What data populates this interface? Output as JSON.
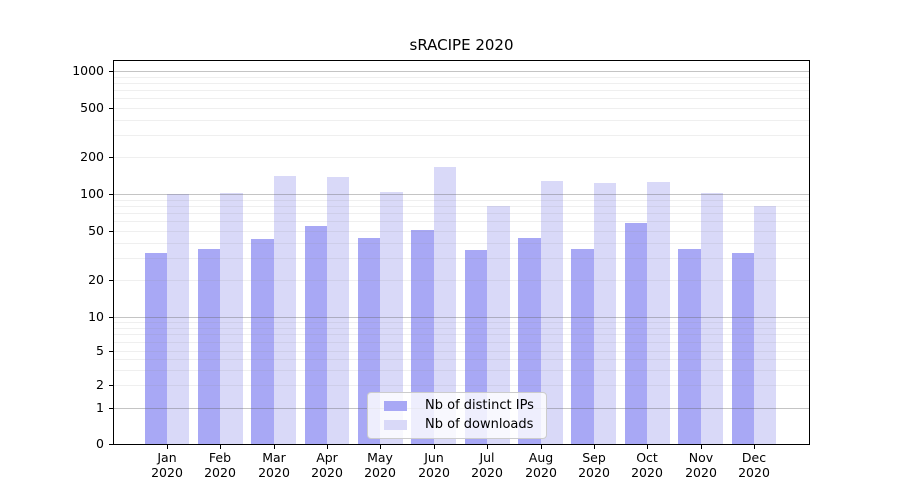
{
  "title": "sRACIPE 2020",
  "colors": {
    "distinct_ips": "#a8a8f5",
    "downloads": "#d9d9f8",
    "axis": "#000000",
    "grid_major": "#c6c6c6",
    "grid_minor": "#ebebeb",
    "legend_border": "#cccccc"
  },
  "legend": {
    "items": [
      {
        "label": "Nb of distinct IPs",
        "color_key": "distinct_ips"
      },
      {
        "label": "Nb of downloads",
        "color_key": "downloads"
      }
    ]
  },
  "x_axis": {
    "months": [
      "Jan",
      "Feb",
      "Mar",
      "Apr",
      "May",
      "Jun",
      "Jul",
      "Aug",
      "Sep",
      "Oct",
      "Nov",
      "Dec"
    ],
    "year": "2020"
  },
  "y_axis": {
    "tick_labels": [
      "0",
      "1",
      "2",
      "5",
      "10",
      "20",
      "50",
      "100",
      "200",
      "500",
      "1000"
    ]
  },
  "chart_data": {
    "type": "bar",
    "title": "sRACIPE 2020",
    "categories": [
      "Jan 2020",
      "Feb 2020",
      "Mar 2020",
      "Apr 2020",
      "May 2020",
      "Jun 2020",
      "Jul 2020",
      "Aug 2020",
      "Sep 2020",
      "Oct 2020",
      "Nov 2020",
      "Dec 2020"
    ],
    "series": [
      {
        "name": "Nb of distinct IPs",
        "color_key": "distinct_ips",
        "values": [
          33,
          36,
          43,
          55,
          44,
          51,
          35,
          44,
          36,
          58,
          36,
          33
        ]
      },
      {
        "name": "Nb of downloads",
        "color_key": "downloads",
        "values": [
          100,
          102,
          140,
          138,
          104,
          165,
          80,
          128,
          124,
          126,
          101,
          80
        ]
      }
    ],
    "xlabel": "",
    "ylabel": "",
    "y_scale": "log-like with ticks 0,1,2,5,10,20,50,100,200,500,1000",
    "ylim": [
      0,
      1280
    ],
    "grid": "horizontal, major at powers of 10, faint minors between",
    "legend_position": "inside bottom-center"
  }
}
